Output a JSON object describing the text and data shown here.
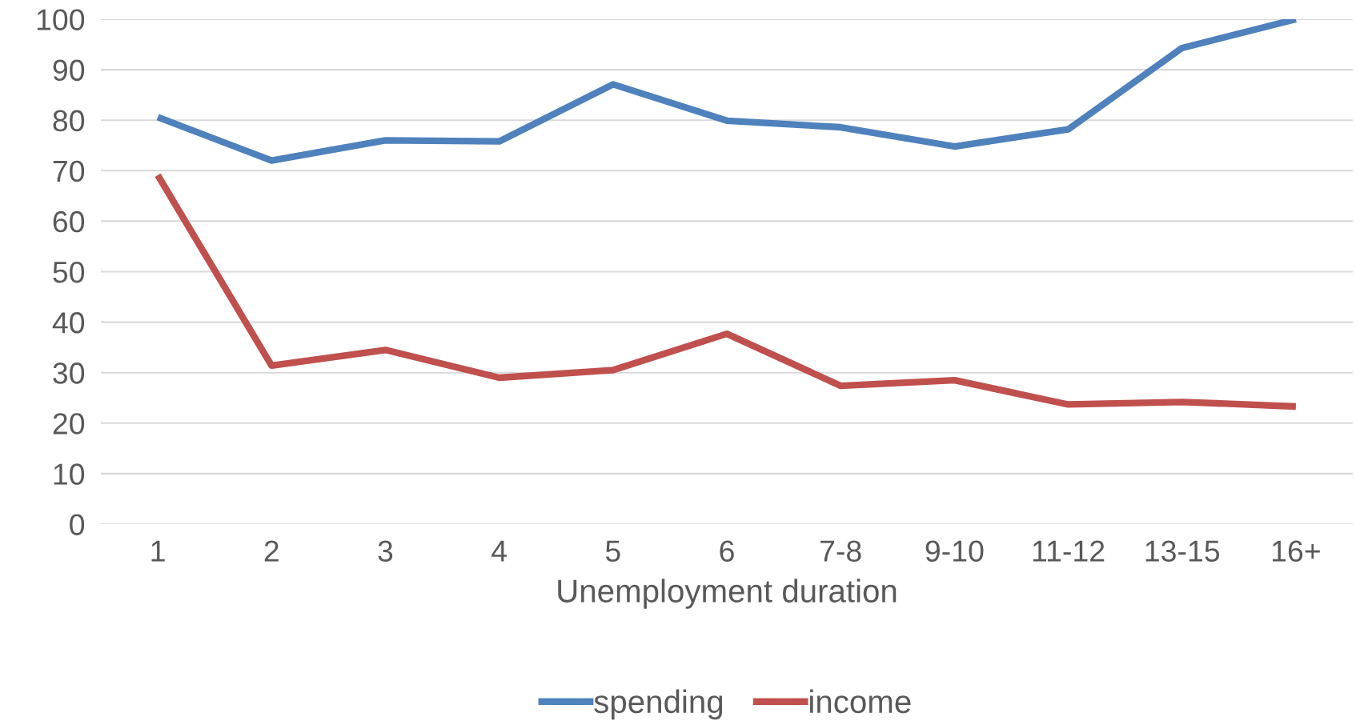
{
  "chart_data": {
    "type": "line",
    "xlabel": "Unemployment duration",
    "categories": [
      "1",
      "2",
      "3",
      "4",
      "5",
      "6",
      "7-8",
      "9-10",
      "11-12",
      "13-15",
      "16+"
    ],
    "series": [
      {
        "name": "spending",
        "color": "#4f81bd",
        "values": [
          80.6,
          72.0,
          76.0,
          75.8,
          87.1,
          79.9,
          78.6,
          74.8,
          78.2,
          94.3,
          100
        ]
      },
      {
        "name": "income",
        "color": "#c0504d",
        "values": [
          69.1,
          31.4,
          34.5,
          29.0,
          30.5,
          37.7,
          27.4,
          28.5,
          23.7,
          24.2,
          23.3
        ]
      }
    ],
    "ylim": [
      0,
      100
    ],
    "yticks": [
      0,
      10,
      20,
      30,
      40,
      50,
      60,
      70,
      80,
      90,
      100
    ],
    "grid": "y",
    "legend": "bottom",
    "marker": "none",
    "line_style": "solid"
  }
}
